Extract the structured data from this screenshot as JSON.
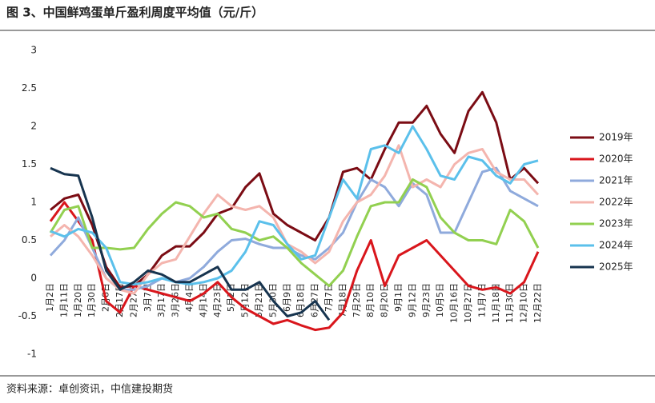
{
  "chart_data": {
    "type": "line",
    "title": "图 3、中国鲜鸡蛋单斤盈利周度平均值（元/斤）",
    "source": "资料来源：卓创资讯，中信建投期货",
    "categories": [
      "1月2日",
      "1月11日",
      "1月20日",
      "1月30日",
      "2月8日",
      "2月17日",
      "2月27日",
      "3月7日",
      "3月17日",
      "3月26日",
      "4月4日",
      "4月14日",
      "4月23日",
      "5月2日",
      "5月12日",
      "5月21日",
      "5月30日",
      "6月9日",
      "6月18日",
      "6月27日",
      "7月7日",
      "7月18日",
      "7月29日",
      "8月10日",
      "8月20日",
      "9月1日",
      "9月12日",
      "9月23日",
      "10月5日",
      "10月16日",
      "10月27日",
      "11月7日",
      "11月18日",
      "11月30日",
      "12月10日",
      "12月22日"
    ],
    "ylim": [
      -1,
      3
    ],
    "yticks": [
      -1,
      -0.5,
      0,
      0.5,
      1,
      1.5,
      2,
      2.5,
      3
    ],
    "legend": "right",
    "series": [
      {
        "name": "2019年",
        "color": "#7b0c14",
        "values": [
          0.9,
          1.05,
          1.1,
          0.7,
          0.15,
          -0.12,
          -0.1,
          0.05,
          0.3,
          0.42,
          0.42,
          0.6,
          0.85,
          0.92,
          1.2,
          1.38,
          0.85,
          0.7,
          0.6,
          0.5,
          0.8,
          1.4,
          1.45,
          1.3,
          1.7,
          2.05,
          2.05,
          2.27,
          1.9,
          1.65,
          2.2,
          2.45,
          2.05,
          1.3,
          1.45,
          1.25
        ]
      },
      {
        "name": "2020年",
        "color": "#d9161c",
        "values": [
          0.75,
          1.0,
          0.75,
          0.5,
          -0.3,
          -0.45,
          -0.1,
          -0.15,
          -0.2,
          -0.25,
          -0.3,
          -0.2,
          -0.05,
          -0.25,
          -0.4,
          -0.5,
          -0.6,
          -0.55,
          -0.62,
          -0.68,
          -0.65,
          -0.45,
          0.1,
          0.5,
          -0.1,
          0.3,
          0.4,
          0.5,
          0.3,
          0.1,
          -0.1,
          -0.15,
          -0.12,
          -0.2,
          -0.05,
          0.35
        ]
      },
      {
        "name": "2021年",
        "color": "#8faadc",
        "values": [
          0.3,
          0.5,
          0.8,
          0.4,
          0.0,
          -0.15,
          -0.15,
          -0.1,
          0.0,
          -0.05,
          0.0,
          0.15,
          0.35,
          0.5,
          0.52,
          0.45,
          0.4,
          0.4,
          0.3,
          0.25,
          0.4,
          0.6,
          1.0,
          1.3,
          1.2,
          0.95,
          1.25,
          1.1,
          0.6,
          0.6,
          1.0,
          1.4,
          1.45,
          1.15,
          1.05,
          0.95
        ]
      },
      {
        "name": "2022年",
        "color": "#f4b5ae",
        "values": [
          0.55,
          0.7,
          0.55,
          0.3,
          0.0,
          -0.15,
          -0.2,
          0.05,
          0.2,
          0.25,
          0.55,
          0.85,
          1.1,
          0.95,
          0.9,
          0.95,
          0.8,
          0.45,
          0.35,
          0.2,
          0.35,
          0.75,
          1.0,
          1.1,
          1.35,
          1.75,
          1.2,
          1.3,
          1.2,
          1.5,
          1.65,
          1.7,
          1.4,
          1.3,
          1.3,
          1.1
        ]
      },
      {
        "name": "2023年",
        "color": "#92d050",
        "values": [
          0.6,
          0.9,
          0.95,
          0.4,
          0.4,
          0.38,
          0.4,
          0.65,
          0.85,
          1.0,
          0.95,
          0.8,
          0.85,
          0.65,
          0.6,
          0.5,
          0.55,
          0.4,
          0.2,
          0.05,
          -0.1,
          0.1,
          0.55,
          0.95,
          1.0,
          1.0,
          1.3,
          1.2,
          0.8,
          0.6,
          0.5,
          0.5,
          0.45,
          0.9,
          0.75,
          0.4
        ]
      },
      {
        "name": "2024年",
        "color": "#5bc0eb",
        "values": [
          0.62,
          0.55,
          0.65,
          0.6,
          0.4,
          -0.05,
          -0.08,
          -0.05,
          0.0,
          -0.05,
          -0.08,
          -0.05,
          0.0,
          0.1,
          0.35,
          0.75,
          0.7,
          0.45,
          0.25,
          0.3,
          0.8,
          1.3,
          1.05,
          1.7,
          1.75,
          1.65,
          2.0,
          1.7,
          1.35,
          1.3,
          1.6,
          1.55,
          1.35,
          1.25,
          1.5,
          1.55
        ]
      },
      {
        "name": "2025年",
        "color": "#17344f",
        "values": [
          1.45,
          1.37,
          1.35,
          0.8,
          0.1,
          -0.15,
          -0.05,
          0.1,
          0.05,
          -0.05,
          -0.05,
          0.05,
          0.15,
          -0.15,
          -0.15,
          -0.05,
          -0.3,
          -0.5,
          -0.45,
          -0.3,
          -0.55,
          null,
          null,
          null,
          null,
          null,
          null,
          null,
          null,
          null,
          null,
          null,
          null,
          null,
          null,
          null
        ]
      }
    ]
  }
}
